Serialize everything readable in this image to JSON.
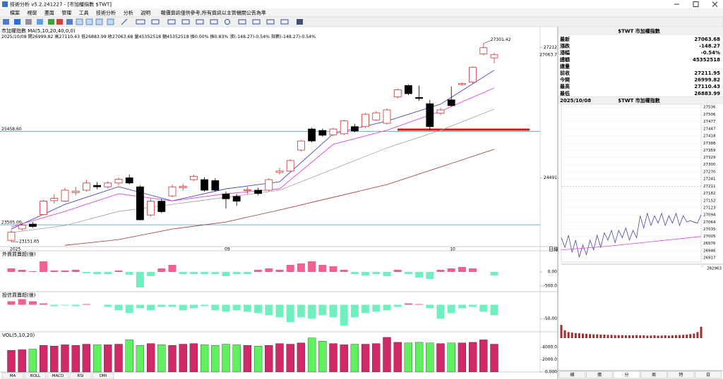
{
  "window": {
    "title": "技術分析 v5.2.241227 - [市加權指數 $TWT]",
    "menu": [
      "檔案",
      "視窗",
      "畫面",
      "管理",
      "工具",
      "技術分析",
      "分析",
      "說明"
    ],
    "notice": "報價資訊僅供參考,所有資訊以主管機關公告為準"
  },
  "chart_data": [
    {
      "type": "candlestick",
      "title": "市加權指數 MA(5,10,20,40,0,0)",
      "subtitle": "2025/10/08 開26999.82 高27110.43 低26883.99 收27063.68 量45352518 額45352518 換0.00% 振0.83% 漲(-148.27)-0.54% 指數(-148.27)-0.54%",
      "open": [
        23180,
        23420,
        23520,
        23720,
        24010,
        24000,
        24180,
        24230,
        24330,
        24300,
        24380,
        24490,
        24300,
        23710,
        24000,
        24110,
        24280,
        24450,
        24450,
        24430,
        24150,
        24100,
        24220,
        24230,
        24230,
        24600,
        24630,
        25070,
        25510,
        25480,
        25390,
        25410,
        25560,
        25560,
        25700,
        25630,
        26180,
        26420,
        26170,
        26040,
        25840,
        26120,
        26440,
        26490,
        27080,
        26999.82
      ],
      "high": [
        23400,
        23560,
        23560,
        24030,
        24150,
        24280,
        24300,
        24450,
        24400,
        24420,
        24500,
        24560,
        24330,
        24050,
        24050,
        24350,
        24360,
        24560,
        24500,
        24480,
        24200,
        24150,
        24300,
        24280,
        24480,
        24700,
        24880,
        25280,
        25540,
        25520,
        25540,
        25700,
        25620,
        25850,
        25880,
        25940,
        26360,
        26450,
        26420,
        26120,
        25950,
        26400,
        26480,
        26820,
        27301.42,
        27110.43
      ],
      "low": [
        23151.65,
        23380,
        23440,
        23700,
        23950,
        23980,
        24120,
        24200,
        24250,
        24260,
        24330,
        24350,
        23600,
        23680,
        23750,
        24080,
        24220,
        24420,
        24200,
        24200,
        23850,
        23900,
        24150,
        24120,
        24200,
        24560,
        24600,
        25040,
        25230,
        25350,
        25360,
        25380,
        25440,
        25530,
        25680,
        25600,
        26150,
        26220,
        26100,
        25480,
        25800,
        25980,
        26420,
        26460,
        27050,
        26883.99
      ],
      "close": [
        23350,
        23500,
        23470,
        24000,
        24060,
        24230,
        24210,
        24380,
        24300,
        24380,
        24460,
        24380,
        23610,
        24000,
        23780,
        24300,
        24310,
        24520,
        24230,
        24230,
        24050,
        24000,
        24240,
        24160,
        24450,
        24630,
        24850,
        25260,
        25260,
        25380,
        25510,
        25680,
        25470,
        25820,
        25850,
        25910,
        26330,
        26250,
        26150,
        25560,
        25910,
        26000,
        26460,
        26800,
        27211.95,
        27063.68
      ],
      "up_color": "#d03030",
      "down_color": "#000000",
      "ylim": [
        23050,
        27650
      ],
      "axis_labels": [
        27212,
        {
          "value": 27063.68,
          "label": "27063.7",
          "color": "#d00000"
        },
        24491
      ],
      "hlines": [
        {
          "value": 25458.6,
          "label": "25458.60",
          "color": "#3a9fb0"
        },
        {
          "value": 23505,
          "label": "23505.00",
          "color": "#3a9fb0"
        }
      ],
      "ma_x": [
        0,
        5,
        10,
        15,
        20,
        25,
        30,
        35,
        40,
        45
      ],
      "ma": [
        {
          "color": "#3030c0",
          "values": [
            23417,
            23933,
            24303,
            24007,
            24258,
            24406,
            25410,
            25676,
            26031,
            26740
          ]
        },
        {
          "color": "#e030e0",
          "values": [
            23461,
            23786,
            24155,
            24007,
            24155,
            24258,
            25189,
            25484,
            25883,
            26370
          ]
        },
        {
          "color": "#a0a0a0",
          "values": [
            23343,
            23490,
            23786,
            23933,
            24081,
            24229,
            24672,
            25115,
            25484,
            25927
          ]
        },
        {
          "color": "#a03030",
          "values": [
            null,
            23077,
            23195,
            23417,
            23564,
            23815,
            24081,
            24347,
            24716,
            25086
          ]
        }
      ],
      "x_labels": [
        {
          "index": 0,
          "label": "2025"
        },
        {
          "index": 20,
          "label": "09"
        },
        {
          "index": 41,
          "label": "10"
        }
      ],
      "period": "日線"
    },
    {
      "type": "bar",
      "title": "外資買賣超(億)",
      "values": [
        125,
        75,
        25,
        375,
        50,
        50,
        75,
        -50,
        -75,
        -75,
        50,
        -100,
        -550,
        -150,
        125,
        250,
        -75,
        -75,
        -75,
        -75,
        -150,
        -75,
        -75,
        75,
        125,
        75,
        250,
        300,
        375,
        250,
        200,
        75,
        -75,
        -125,
        -75,
        -150,
        75,
        -75,
        -200,
        -250,
        75,
        125,
        175,
        125,
        0,
        -125
      ],
      "pos_color": "#f06090",
      "neg_color": "#70f0c0",
      "ylim": [
        -700,
        750
      ],
      "yticks": [
        {
          "value": 0,
          "label": "0.00"
        },
        {
          "value": -500,
          "label": "-500.0"
        }
      ]
    },
    {
      "type": "bar",
      "title": "投信買賣超(億)",
      "values": [
        12.5,
        20,
        12.5,
        5,
        -5,
        -2.5,
        -5,
        2.5,
        0,
        -7.5,
        -20,
        -30,
        -12.5,
        -20,
        -7.5,
        -7.5,
        -20,
        -12.5,
        -5,
        -20,
        -25,
        -20,
        -25,
        -30,
        -37.5,
        -45,
        -62.5,
        -45,
        -50,
        -37.5,
        -45,
        -75,
        -45,
        -30,
        -25,
        -20,
        -7.5,
        5,
        2.5,
        -12.5,
        -50,
        -30,
        -12.5,
        -7.5,
        -25,
        -37.5
      ],
      "pos_color": "#f06090",
      "neg_color": "#70f0c0",
      "ylim": [
        -97,
        47
      ],
      "yticks": [
        {
          "value": -50,
          "label": "-50.00"
        }
      ]
    },
    {
      "type": "volume",
      "title": "VOL(5,10,20)",
      "values": [
        3500,
        3600,
        3700,
        4300,
        4200,
        4400,
        4300,
        4500,
        4400,
        4400,
        4500,
        5200,
        4300,
        4600,
        4400,
        4300,
        4500,
        4600,
        4400,
        4300,
        4500,
        4400,
        4300,
        4200,
        4300,
        4600,
        4500,
        4700,
        5500,
        5000,
        4600,
        4400,
        4500,
        4500,
        4600,
        5600,
        4800,
        4700,
        4800,
        4700,
        4600,
        4700,
        4700,
        4800,
        5200,
        4500
      ],
      "up_color": "#d02868",
      "down_color": "#60f060",
      "ylim": [
        0,
        6500
      ],
      "yticks": [
        {
          "value": 4000,
          "label": "4000.0"
        },
        {
          "value": 2000,
          "label": "2000.0"
        },
        {
          "value": 0,
          "label": "0.000"
        }
      ]
    },
    {
      "type": "line",
      "date": "2025/10/08",
      "title": "$TWT 市加權指數",
      "ylim": [
        26900,
        27548
      ],
      "xlim": [
        0,
        39
      ],
      "ref": 27211.95,
      "yticks": [
        27536,
        27506,
        27477,
        27447,
        27418,
        27388,
        27359,
        27329,
        27300,
        27270,
        27241,
        27211,
        27182,
        27152,
        27123,
        27094,
        27064,
        27035,
        27005,
        26976,
        26946,
        26917
      ],
      "up_color": "#c00000",
      "down_color": "#000000",
      "series": [
        {
          "color": "#4a4aa0",
          "x": [
            0,
            1,
            2,
            3,
            4,
            5,
            6,
            7,
            8,
            9,
            10,
            11,
            12,
            13,
            14,
            15,
            16,
            17,
            18,
            19,
            20,
            21,
            22,
            23,
            24,
            25,
            26,
            27,
            28,
            29,
            30,
            31,
            32,
            33,
            34,
            35,
            36,
            37,
            38,
            39
          ],
          "values": [
            27000,
            26960,
            27010,
            26940,
            26990,
            26920,
            26970,
            26930,
            26990,
            26950,
            27010,
            26960,
            27020,
            26990,
            27030,
            26980,
            27030,
            27000,
            27040,
            26990,
            27030,
            27000,
            27090,
            27040,
            27100,
            27050,
            27090,
            27060,
            27100,
            27050,
            27090,
            27060,
            27100,
            27050,
            27090,
            27065,
            27070,
            27064,
            27060,
            27094
          ]
        },
        {
          "color": "#e040e0",
          "x": [
            0,
            13,
            26,
            39
          ],
          "values": [
            26950,
            26965,
            26985,
            27005
          ]
        }
      ]
    },
    {
      "type": "bar",
      "color": "#a03030",
      "ylim": [
        0,
        282963
      ],
      "yticks": [
        282963
      ],
      "xlim": [
        0,
        39
      ],
      "values": [
        52000,
        31000,
        24000,
        22000,
        20000,
        19000,
        18000,
        17000,
        16000,
        15000,
        15000,
        14000,
        14000,
        13000,
        13000,
        12000,
        12000,
        12000,
        11000,
        11000,
        11000,
        12000,
        11000,
        11000,
        10000,
        10000,
        11000,
        10000,
        10000,
        11000,
        10000,
        11000,
        12000,
        12000,
        13000,
        14000,
        16000,
        18000,
        24000,
        45000
      ]
    }
  ],
  "quote": {
    "title": "$TWT 市加權指數",
    "rows": [
      {
        "label": "最新",
        "value": "27063.68",
        "color": "#008800"
      },
      {
        "label": "漲跌",
        "value": "-148.27",
        "color": "#008800"
      },
      {
        "label": "漲幅",
        "value": "-0.54%",
        "color": "#008800"
      },
      {
        "label": "總額",
        "value": "45352518"
      },
      {
        "label": "總量"
      },
      {
        "label": "前收",
        "value": "27211.95"
      },
      {
        "label": "今開",
        "value": "26999.82",
        "color": "#008800"
      },
      {
        "label": "最高",
        "value": "27110.43",
        "color": "#008800"
      },
      {
        "label": "最低",
        "value": "26883.99",
        "color": "#008800"
      }
    ]
  },
  "tabs": [
    "MA",
    "BOLL",
    "MACD",
    "RSI",
    "DMI"
  ],
  "side_tabs": [
    "細",
    "價",
    "分",
    "周",
    "特",
    "日"
  ]
}
